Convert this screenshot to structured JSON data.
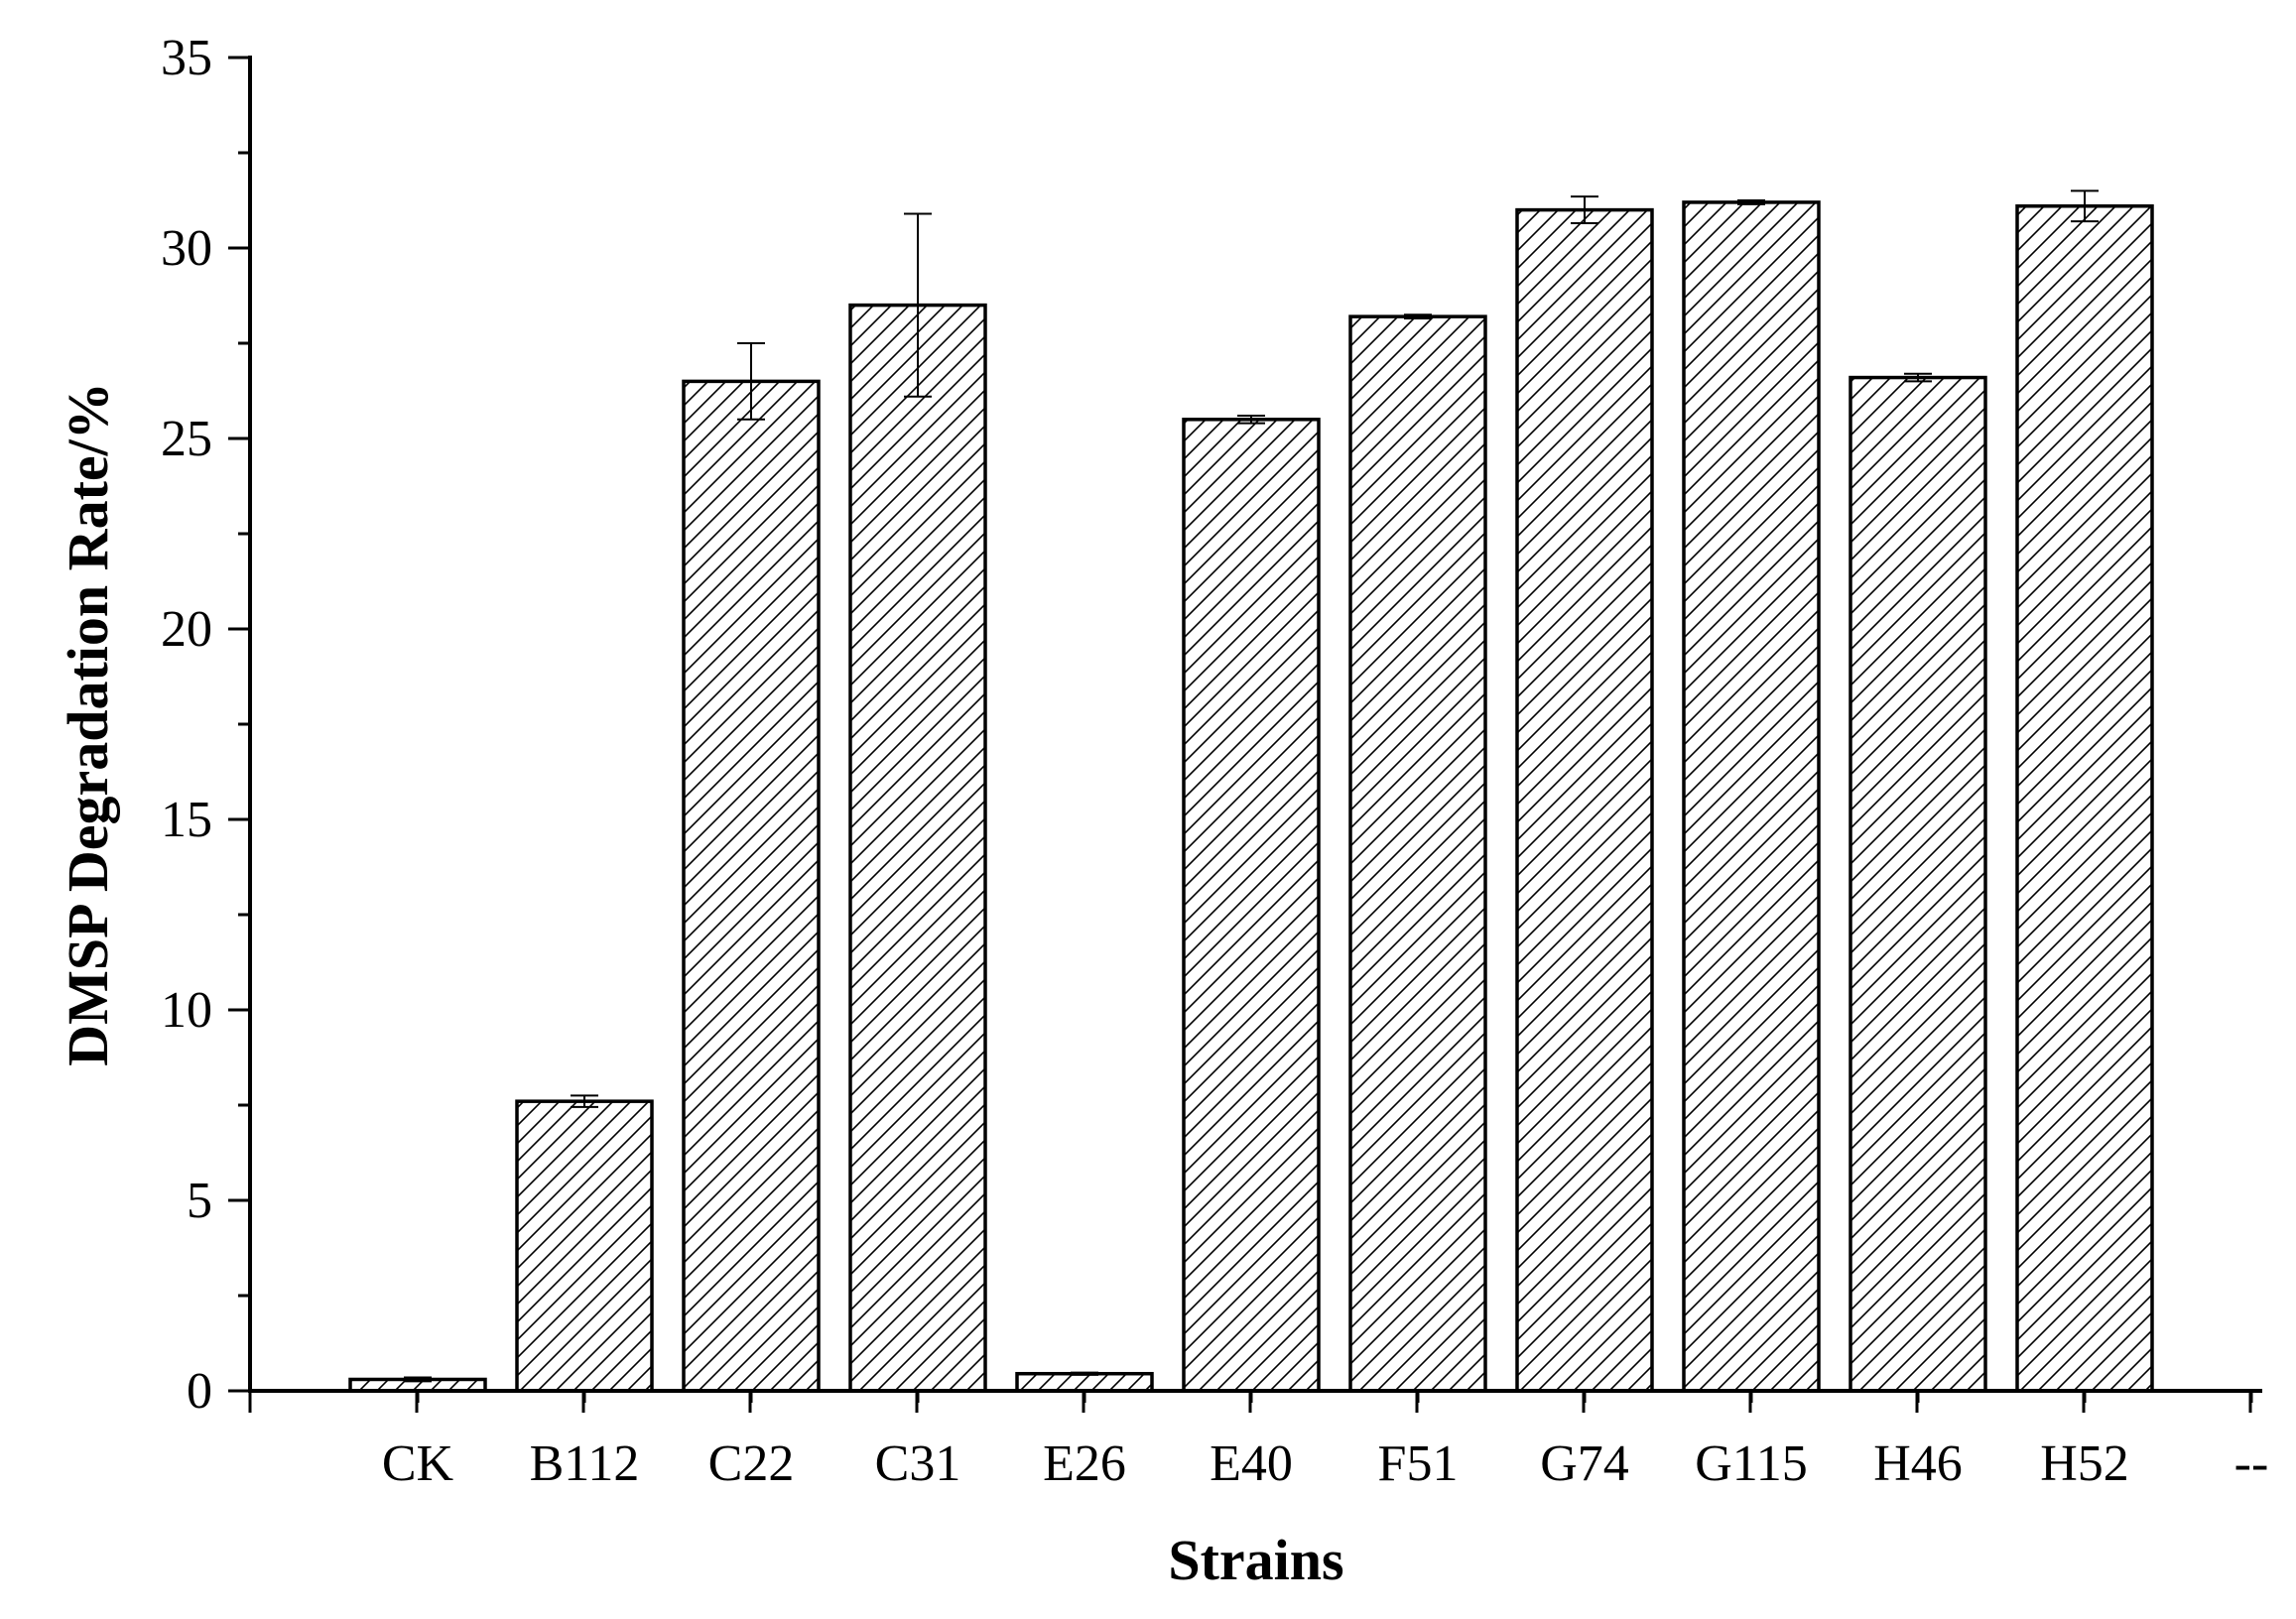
{
  "chart_data": {
    "type": "bar",
    "xlabel": "Strains",
    "ylabel": "DMSP Degradation Rate/%",
    "categories": [
      "CK",
      "B112",
      "C22",
      "C31",
      "E26",
      "E40",
      "F51",
      "G74",
      "G115",
      "H46",
      "H52",
      "--"
    ],
    "values": [
      0.3,
      7.6,
      26.5,
      28.5,
      0.45,
      25.5,
      28.2,
      31.0,
      31.2,
      26.6,
      31.1,
      null
    ],
    "errors": [
      0.05,
      0.15,
      1.0,
      2.4,
      0.03,
      0.1,
      0.05,
      0.35,
      0.05,
      0.1,
      0.4,
      null
    ],
    "ylim": [
      0,
      35
    ],
    "yticks": [
      0,
      5,
      10,
      15,
      20,
      25,
      30,
      35
    ],
    "bar_fill": "hatched diagonal lines",
    "grid": false,
    "legend": "none"
  }
}
